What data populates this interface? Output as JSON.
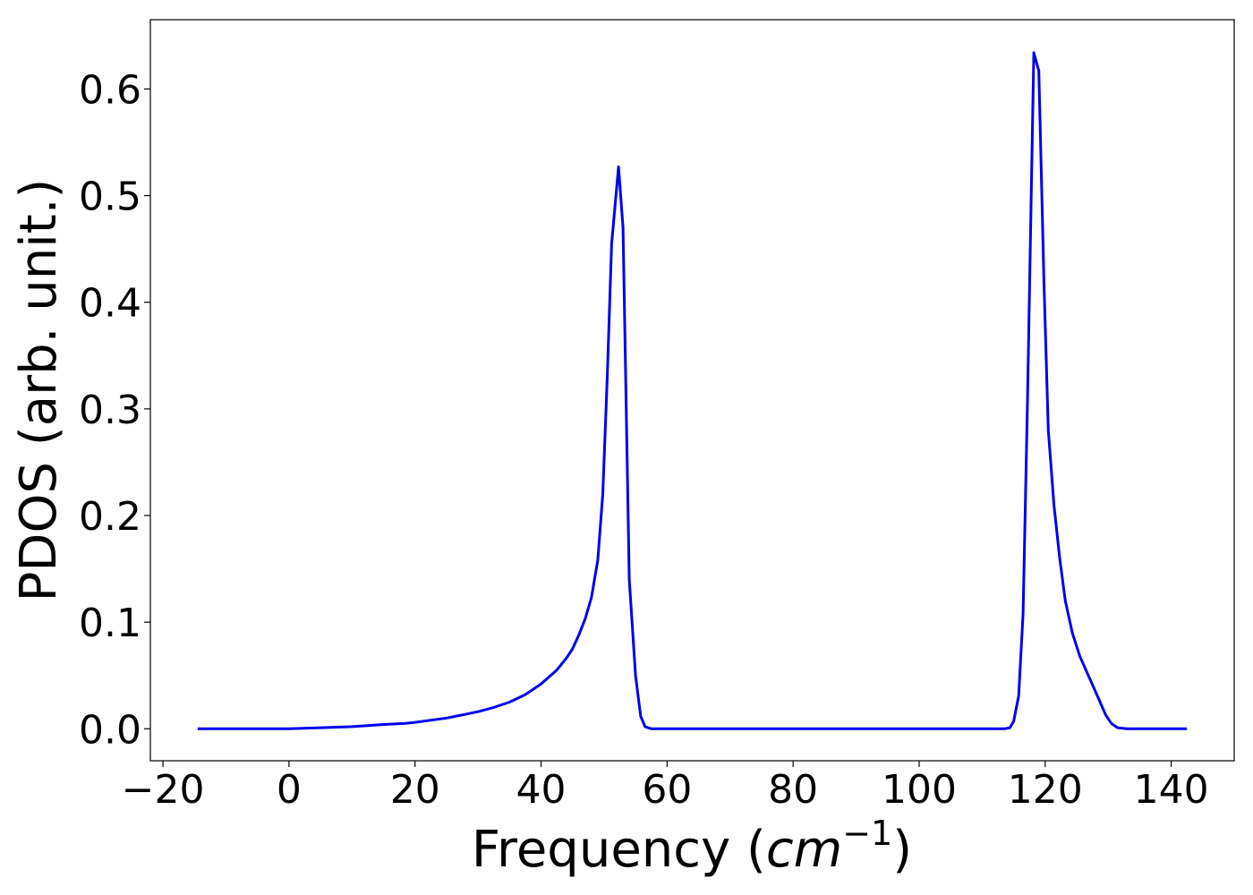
{
  "chart_data": {
    "type": "line",
    "title": "",
    "xlabel": {
      "text": "Frequency (",
      "unit": "cm",
      "exponent": "−1",
      "close": ")"
    },
    "ylabel": "PDOS (arb. unit.)",
    "xlim": [
      -22,
      150
    ],
    "ylim": [
      -0.03,
      0.665
    ],
    "xticks": [
      -20,
      0,
      20,
      40,
      60,
      80,
      100,
      120,
      140
    ],
    "xtick_labels": [
      "−20",
      "0",
      "20",
      "40",
      "60",
      "80",
      "100",
      "120",
      "140"
    ],
    "yticks": [
      0.0,
      0.1,
      0.2,
      0.3,
      0.4,
      0.5,
      0.6
    ],
    "ytick_labels": [
      "0.0",
      "0.1",
      "0.2",
      "0.3",
      "0.4",
      "0.5",
      "0.6"
    ],
    "grid": false,
    "series": [
      {
        "color": "#0000ee",
        "x": [
          -14.5,
          0,
          5,
          10,
          12.5,
          15,
          18.5,
          20,
          22.5,
          25,
          27.5,
          30,
          32.5,
          35,
          37.5,
          40,
          42.5,
          44,
          45,
          46,
          47,
          48,
          49,
          49.8,
          50.5,
          51.2,
          52.3,
          53,
          54,
          55,
          55.8,
          56.5,
          57.5,
          60,
          80,
          100,
          113.5,
          114.4,
          115,
          115.8,
          116.5,
          117.2,
          118.2,
          119,
          119.8,
          120.5,
          121.4,
          122.3,
          123.2,
          124.3,
          125.5,
          127,
          128.5,
          129.6,
          130.5,
          131.5,
          133,
          135,
          142.5
        ],
        "y": [
          0.0,
          0.0,
          0.001,
          0.002,
          0.003,
          0.004,
          0.005,
          0.006,
          0.008,
          0.01,
          0.013,
          0.016,
          0.02,
          0.025,
          0.032,
          0.042,
          0.055,
          0.066,
          0.075,
          0.088,
          0.103,
          0.123,
          0.158,
          0.22,
          0.33,
          0.455,
          0.527,
          0.47,
          0.14,
          0.05,
          0.012,
          0.002,
          0.0,
          0.0,
          0.0,
          0.0,
          0.0,
          0.001,
          0.007,
          0.031,
          0.108,
          0.31,
          0.634,
          0.617,
          0.42,
          0.28,
          0.21,
          0.16,
          0.12,
          0.09,
          0.068,
          0.048,
          0.028,
          0.013,
          0.005,
          0.001,
          0.0,
          0.0,
          0.0
        ]
      }
    ]
  }
}
